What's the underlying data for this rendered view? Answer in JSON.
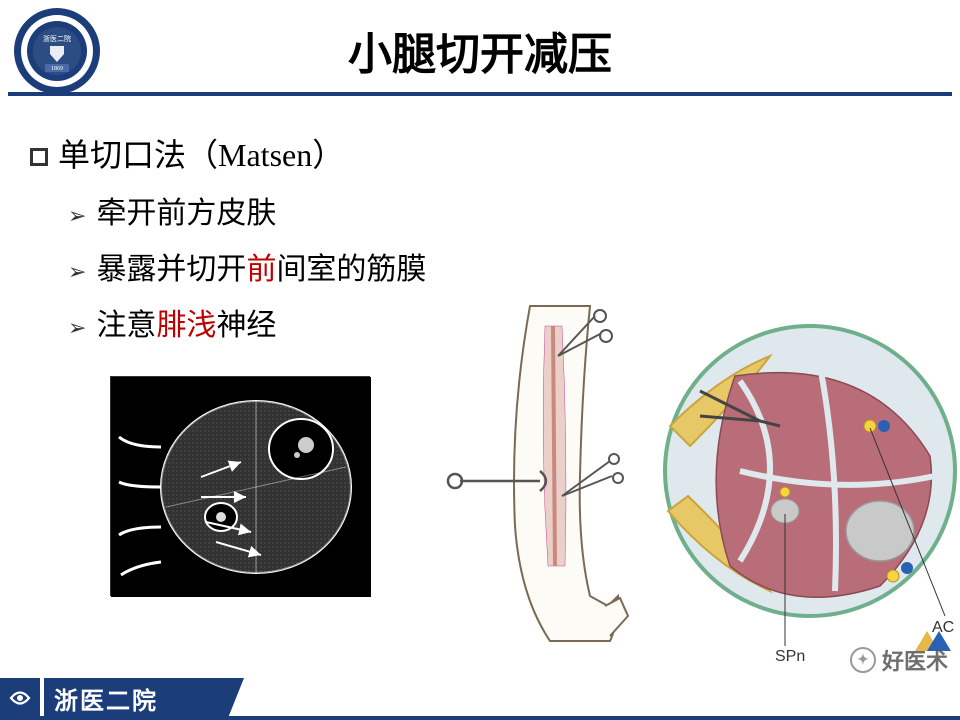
{
  "colors": {
    "navy": "#1b3d7a",
    "red": "#c00000",
    "line": "#1b3d7a",
    "footer_bg": "#1b3d7a",
    "white": "#ffffff",
    "black": "#000000"
  },
  "header": {
    "title": "小腿切开减压",
    "title_fontsize": 44,
    "logo": {
      "outer_text_top": "浙医二院",
      "year": "1869",
      "ring_color": "#1b3d7a"
    }
  },
  "content": {
    "main_bullet": {
      "text_parts": [
        "单切口法（",
        "Matsen",
        "）"
      ],
      "fontsize": 32
    },
    "sub_bullets": [
      {
        "parts": [
          {
            "t": "牵开前方皮肤",
            "red": false
          }
        ],
        "fontsize": 30
      },
      {
        "parts": [
          {
            "t": "暴露并切开",
            "red": false
          },
          {
            "t": "前",
            "red": true
          },
          {
            "t": "间室的筋膜",
            "red": false
          }
        ],
        "fontsize": 30
      },
      {
        "parts": [
          {
            "t": "注意",
            "red": false
          },
          {
            "t": "腓浅",
            "red": true
          },
          {
            "t": "神经",
            "red": false
          }
        ],
        "fontsize": 30
      }
    ]
  },
  "diagram_labels": {
    "right": {
      "spn": "SPn",
      "ac": "AC"
    },
    "muscle_color": "#b96d78",
    "fascia_color": "#dfe8ec",
    "bone_color": "#c9c9c9",
    "band_color": "#e6c867",
    "nerve_yellow": "#f5d442",
    "vessel_blue": "#2962b5"
  },
  "footer": {
    "hospital": "浙医二院",
    "watermark": "好医术"
  }
}
